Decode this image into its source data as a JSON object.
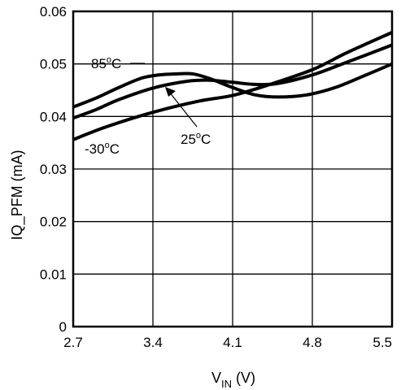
{
  "chart_data": {
    "type": "line",
    "xlabel": {
      "main": "V",
      "sub": "IN",
      "unit": " (V)"
    },
    "ylabel": "IQ_PFM (mA)",
    "xlim": [
      2.7,
      5.5
    ],
    "ylim": [
      0,
      0.06
    ],
    "x_ticks": [
      "2.7",
      "3.4",
      "4.1",
      "4.8",
      "5.5"
    ],
    "y_ticks": [
      "0",
      "0.01",
      "0.02",
      "0.03",
      "0.04",
      "0.05",
      "0.06"
    ],
    "grid": true,
    "legend": "none",
    "series": [
      {
        "name": "85°C",
        "x": [
          2.7,
          2.9,
          3.1,
          3.3,
          3.45,
          3.6,
          3.75,
          3.9,
          4.1,
          4.3,
          4.5,
          4.75,
          5.0,
          5.25,
          5.5
        ],
        "y": [
          0.0418,
          0.0435,
          0.0455,
          0.0473,
          0.0479,
          0.0481,
          0.0481,
          0.0472,
          0.0455,
          0.0441,
          0.0437,
          0.0441,
          0.0455,
          0.0477,
          0.05
        ]
      },
      {
        "name": "25°C",
        "x": [
          2.7,
          2.9,
          3.1,
          3.4,
          3.7,
          3.9,
          4.1,
          4.3,
          4.5,
          4.8,
          5.1,
          5.5
        ],
        "y": [
          0.0397,
          0.0413,
          0.0432,
          0.0454,
          0.0467,
          0.0469,
          0.0465,
          0.0461,
          0.0463,
          0.0479,
          0.0503,
          0.0536
        ]
      },
      {
        "name": "-30°C",
        "x": [
          2.7,
          3.0,
          3.4,
          3.8,
          4.1,
          4.4,
          4.8,
          5.1,
          5.5
        ],
        "y": [
          0.0356,
          0.0381,
          0.0408,
          0.0429,
          0.044,
          0.0459,
          0.0489,
          0.0521,
          0.056
        ]
      }
    ],
    "annotations": [
      {
        "num": "85",
        "deg": "o",
        "unit": "C"
      },
      {
        "num": "25",
        "deg": "o",
        "unit": "C"
      },
      {
        "num": "-30",
        "deg": "o",
        "unit": "C"
      }
    ]
  }
}
